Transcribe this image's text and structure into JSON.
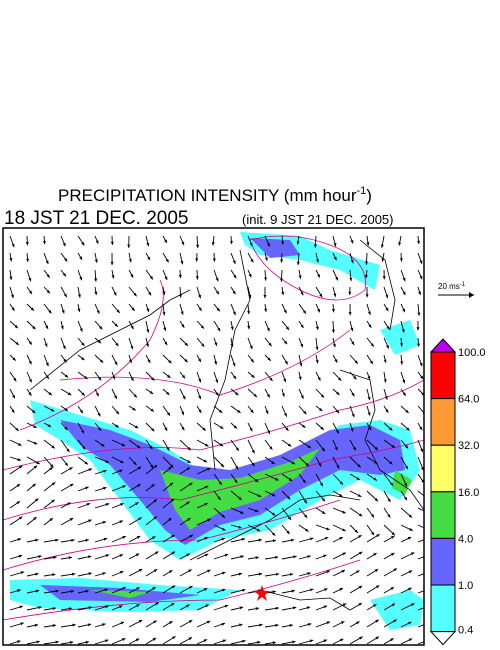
{
  "header": {
    "title": "PRECIPITATION INTENSITY (mm hour",
    "title_superscript": "-1",
    "title_close": ")",
    "valid_time": "18 JST 21 DEC. 2005",
    "init_time": "(init. 9 JST 21 DEC. 2005)"
  },
  "wind_scale": {
    "label": "20 ms",
    "label_superscript": "-1"
  },
  "colorbar": {
    "levels": [
      {
        "label": "100.0",
        "color": "#ff0000"
      },
      {
        "label": "64.0",
        "color": "#ff9933"
      },
      {
        "label": "32.0",
        "color": "#ffff66"
      },
      {
        "label": "16.0",
        "color": "#44dd44"
      },
      {
        "label": "4.0",
        "color": "#6666ff"
      },
      {
        "label": "1.0",
        "color": "#55ffff"
      },
      {
        "label": "0.4",
        "color": "#ffffff"
      }
    ],
    "top_color": "#bb00ee"
  }
}
